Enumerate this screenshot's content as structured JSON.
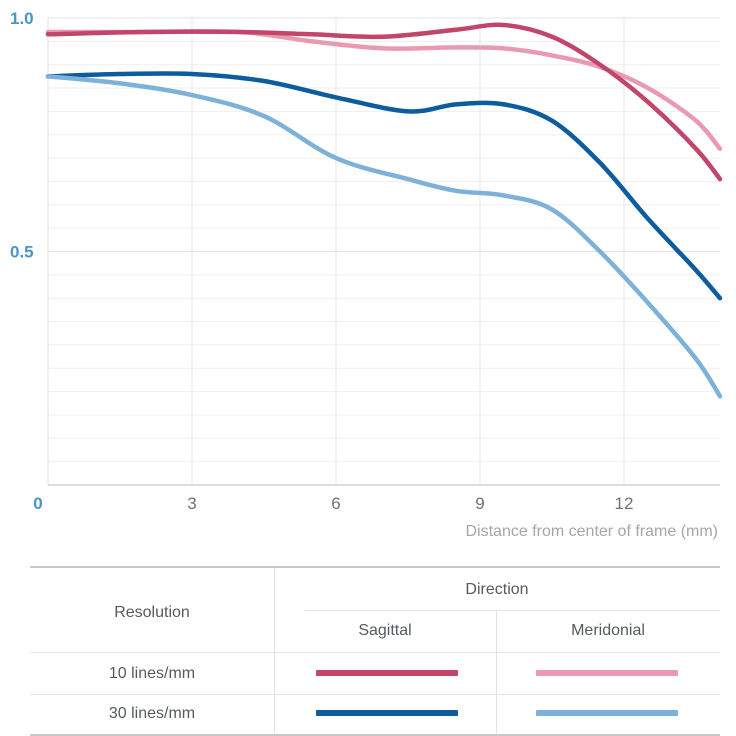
{
  "chart_data": {
    "type": "line",
    "title": "",
    "xlabel": "Distance from center of frame (mm)",
    "ylabel": "",
    "xlim": [
      0,
      14
    ],
    "ylim": [
      0,
      1.0
    ],
    "xticks": [
      0,
      3,
      6,
      9,
      12
    ],
    "xtick_labels": [
      "0",
      "3",
      "6",
      "9",
      "12"
    ],
    "yticks": [
      0,
      0.5,
      1.0
    ],
    "ytick_labels": [
      "0",
      "0.5",
      "1.0"
    ],
    "series": [
      {
        "name": "10 lines/mm Meridonial",
        "resolution": "10 lines/mm",
        "direction": "Meridonial",
        "color": "#e99ab1",
        "x": [
          0,
          2,
          4,
          5.5,
          7,
          8.5,
          9.5,
          10.5,
          11.5,
          12.5,
          13.5,
          14
        ],
        "y": [
          0.97,
          0.97,
          0.97,
          0.95,
          0.935,
          0.937,
          0.935,
          0.92,
          0.895,
          0.85,
          0.78,
          0.72
        ]
      },
      {
        "name": "10 lines/mm Sagittal",
        "resolution": "10 lines/mm",
        "direction": "Sagittal",
        "color": "#c2456a",
        "x": [
          0,
          2,
          4,
          5.5,
          7,
          8.5,
          9.5,
          10.5,
          11.5,
          12.5,
          13.5,
          14
        ],
        "y": [
          0.965,
          0.97,
          0.97,
          0.965,
          0.96,
          0.975,
          0.985,
          0.96,
          0.9,
          0.82,
          0.72,
          0.655
        ]
      },
      {
        "name": "30 lines/mm Sagittal",
        "resolution": "30 lines/mm",
        "direction": "Sagittal",
        "color": "#0d5c9e",
        "x": [
          0,
          1.5,
          3,
          4.5,
          6,
          7.5,
          8.5,
          9.5,
          10.5,
          11.5,
          12.5,
          13.5,
          14
        ],
        "y": [
          0.875,
          0.88,
          0.88,
          0.865,
          0.83,
          0.8,
          0.815,
          0.815,
          0.78,
          0.69,
          0.57,
          0.46,
          0.4
        ]
      },
      {
        "name": "30 lines/mm Meridonial",
        "resolution": "30 lines/mm",
        "direction": "Meridonial",
        "color": "#7eb1d9",
        "x": [
          0,
          1.5,
          3,
          4.5,
          6,
          7.5,
          8.5,
          9.5,
          10.5,
          11.5,
          12.5,
          13.5,
          14
        ],
        "y": [
          0.875,
          0.86,
          0.835,
          0.79,
          0.7,
          0.655,
          0.63,
          0.62,
          0.59,
          0.5,
          0.39,
          0.27,
          0.19
        ]
      }
    ]
  },
  "legend": {
    "resolution_header": "Resolution",
    "direction_header": "Direction",
    "col_sagittal": "Sagittal",
    "col_meridonial": "Meridonial",
    "rows": [
      {
        "label": "10 lines/mm",
        "sagittal_color": "#c2456a",
        "meridonial_color": "#e99ab1"
      },
      {
        "label": "30 lines/mm",
        "sagittal_color": "#0d5c9e",
        "meridonial_color": "#7eb1d9"
      }
    ]
  }
}
